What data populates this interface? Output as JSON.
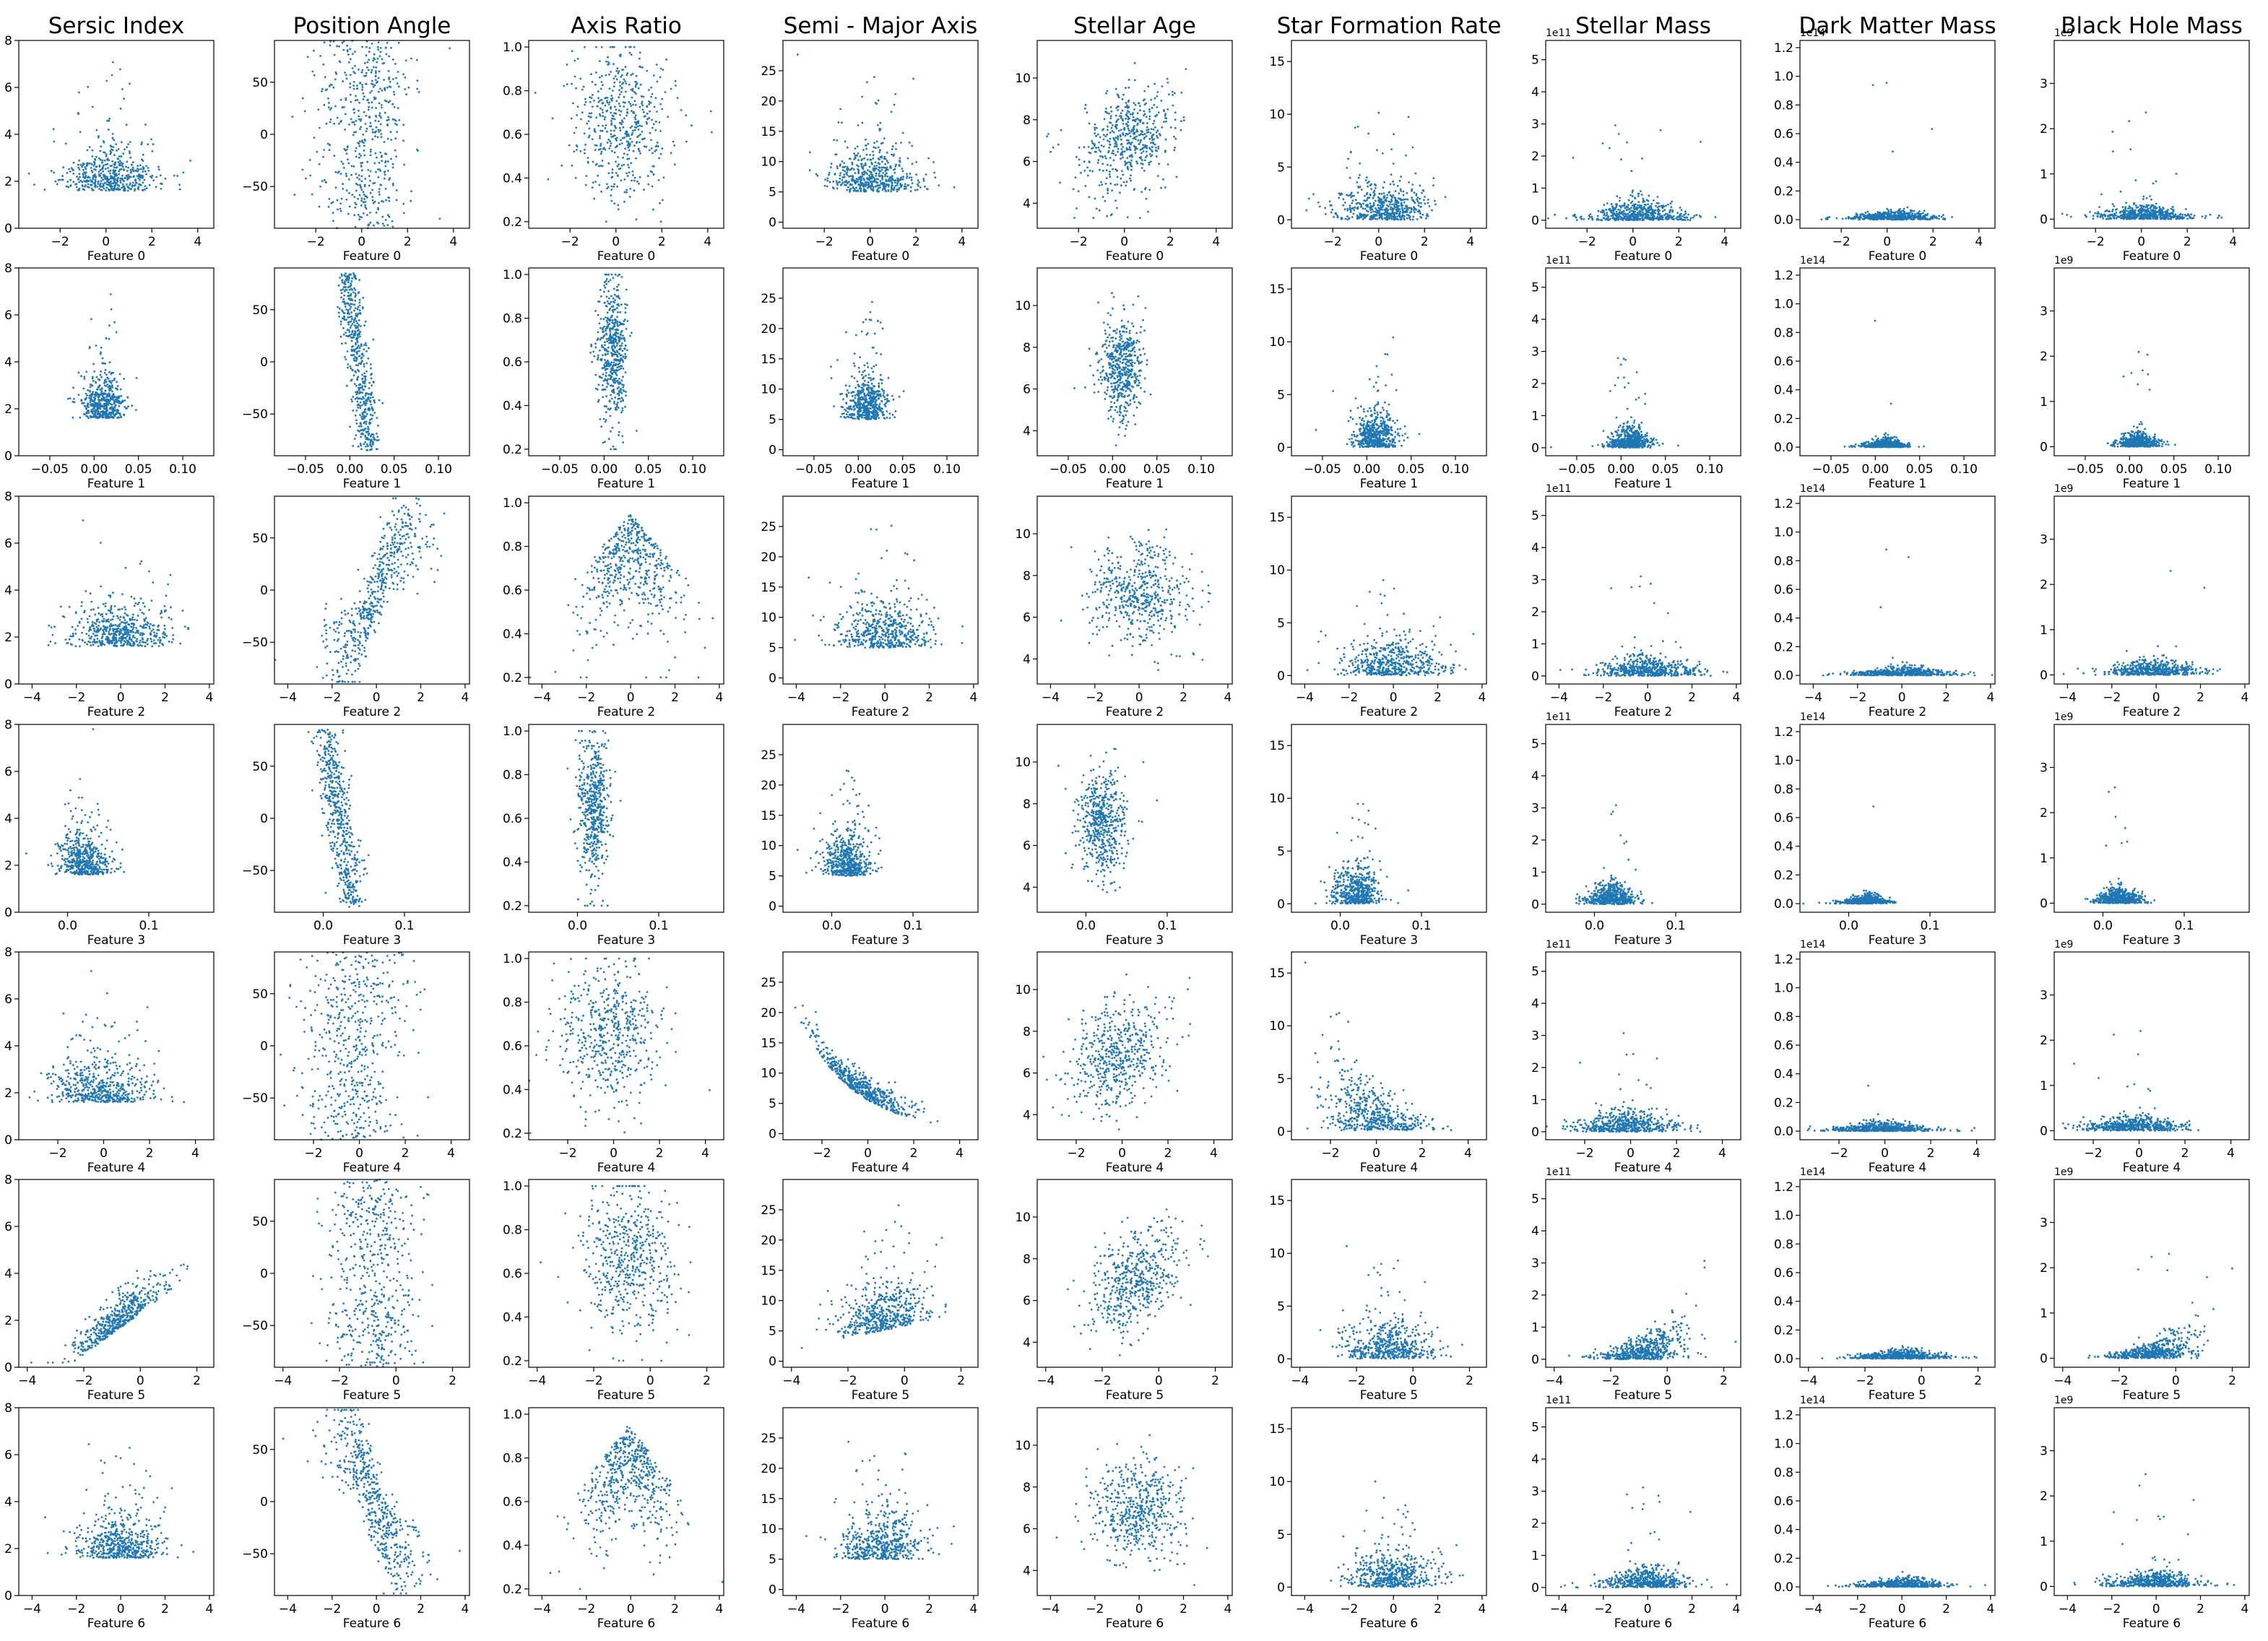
{
  "chart_data": {
    "type": "scatter",
    "layout": "grid",
    "n_rows": 7,
    "n_cols": 9,
    "marker_color": "#1f77b4",
    "grid": false,
    "column_titles": [
      "Sersic Index",
      "Position Angle",
      "Axis Ratio",
      "Semi - Major Axis",
      "Stellar Age",
      "Star Formation Rate",
      "Stellar Mass",
      "Dark Matter Mass",
      "Black Hole Mass"
    ],
    "row_xlabels": [
      "Feature 0",
      "Feature 1",
      "Feature 2",
      "Feature 3",
      "Feature 4",
      "Feature 5",
      "Feature 6"
    ],
    "columns": [
      {
        "title": "Sersic Index",
        "ylim": [
          0,
          8
        ],
        "yticks": [
          0,
          2,
          4,
          6,
          8
        ],
        "ytick_labels": [
          "0",
          "2",
          "4",
          "6",
          "8"
        ],
        "offset": ""
      },
      {
        "title": "Position Angle",
        "ylim": [
          -90,
          90
        ],
        "yticks": [
          -50,
          0,
          50
        ],
        "ytick_labels": [
          "−50",
          "0",
          "50"
        ],
        "offset": ""
      },
      {
        "title": "Axis Ratio",
        "ylim": [
          0.17,
          1.03
        ],
        "yticks": [
          0.2,
          0.4,
          0.6,
          0.8,
          1.0
        ],
        "ytick_labels": [
          "0.2",
          "0.4",
          "0.6",
          "0.8",
          "1.0"
        ],
        "offset": ""
      },
      {
        "title": "Semi - Major Axis",
        "ylim": [
          -1,
          30
        ],
        "yticks": [
          0,
          5,
          10,
          15,
          20,
          25
        ],
        "ytick_labels": [
          "0",
          "5",
          "10",
          "15",
          "20",
          "25"
        ],
        "offset": ""
      },
      {
        "title": "Stellar Age",
        "ylim": [
          2.8,
          11.8
        ],
        "yticks": [
          4,
          6,
          8,
          10
        ],
        "ytick_labels": [
          "4",
          "6",
          "8",
          "10"
        ],
        "offset": ""
      },
      {
        "title": "Star Formation Rate",
        "ylim": [
          -0.8,
          17
        ],
        "yticks": [
          0,
          5,
          10,
          15
        ],
        "ytick_labels": [
          "0",
          "5",
          "10",
          "15"
        ],
        "offset": ""
      },
      {
        "title": "Stellar Mass",
        "ylim": [
          -0.25,
          5.6
        ],
        "yticks": [
          0,
          1,
          2,
          3,
          4,
          5
        ],
        "ytick_labels": [
          "0",
          "1",
          "2",
          "3",
          "4",
          "5"
        ],
        "offset": "1e11"
      },
      {
        "title": "Dark Matter Mass",
        "ylim": [
          -0.06,
          1.25
        ],
        "yticks": [
          0.0,
          0.2,
          0.4,
          0.6,
          0.8,
          1.0,
          1.2
        ],
        "ytick_labels": [
          "0.0",
          "0.2",
          "0.4",
          "0.6",
          "0.8",
          "1.0",
          "1.2"
        ],
        "offset": "1e14"
      },
      {
        "title": "Black Hole Mass",
        "ylim": [
          -0.2,
          3.95
        ],
        "yticks": [
          0,
          1,
          2,
          3
        ],
        "ytick_labels": [
          "0",
          "1",
          "2",
          "3"
        ],
        "offset": "1e9"
      }
    ],
    "rows": [
      {
        "xlabel": "Feature 0",
        "xlim": [
          -3.8,
          4.7
        ],
        "xticks": [
          -2,
          0,
          2,
          4
        ],
        "xtick_labels": [
          "−2",
          "0",
          "2",
          "4"
        ],
        "x_center": 0.2,
        "x_sd": 1.0
      },
      {
        "xlabel": "Feature 1",
        "xlim": [
          -0.085,
          0.135
        ],
        "xticks": [
          -0.05,
          0.0,
          0.05,
          0.1
        ],
        "xtick_labels": [
          "−0.05",
          "0.00",
          "0.05",
          "0.10"
        ],
        "x_center": 0.01,
        "x_sd": 0.012
      },
      {
        "xlabel": "Feature 2",
        "xlim": [
          -4.6,
          4.2
        ],
        "xticks": [
          -4,
          -2,
          0,
          2,
          4
        ],
        "xtick_labels": [
          "−4",
          "−2",
          "0",
          "2",
          "4"
        ],
        "x_center": 0.0,
        "x_sd": 1.1
      },
      {
        "xlabel": "Feature 3",
        "xlim": [
          -0.06,
          0.18
        ],
        "xticks": [
          0.0,
          0.1
        ],
        "xtick_labels": [
          "0.0",
          "0.1"
        ],
        "x_center": 0.02,
        "x_sd": 0.015
      },
      {
        "xlabel": "Feature 4",
        "xlim": [
          -3.7,
          4.8
        ],
        "xticks": [
          -2,
          0,
          2,
          4
        ],
        "xtick_labels": [
          "−2",
          "0",
          "2",
          "4"
        ],
        "x_center": -0.2,
        "x_sd": 1.1
      },
      {
        "xlabel": "Feature 5",
        "xlim": [
          -4.3,
          2.6
        ],
        "xticks": [
          -4,
          -2,
          0,
          2
        ],
        "xtick_labels": [
          "−4",
          "−2",
          "0",
          "2"
        ],
        "x_center": -0.8,
        "x_sd": 0.8
      },
      {
        "xlabel": "Feature 6",
        "xlim": [
          -4.6,
          4.2
        ],
        "xticks": [
          -4,
          -2,
          0,
          2,
          4
        ],
        "xtick_labels": [
          "−4",
          "−2",
          "0",
          "2",
          "4"
        ],
        "x_center": -0.1,
        "x_sd": 1.0
      }
    ]
  }
}
